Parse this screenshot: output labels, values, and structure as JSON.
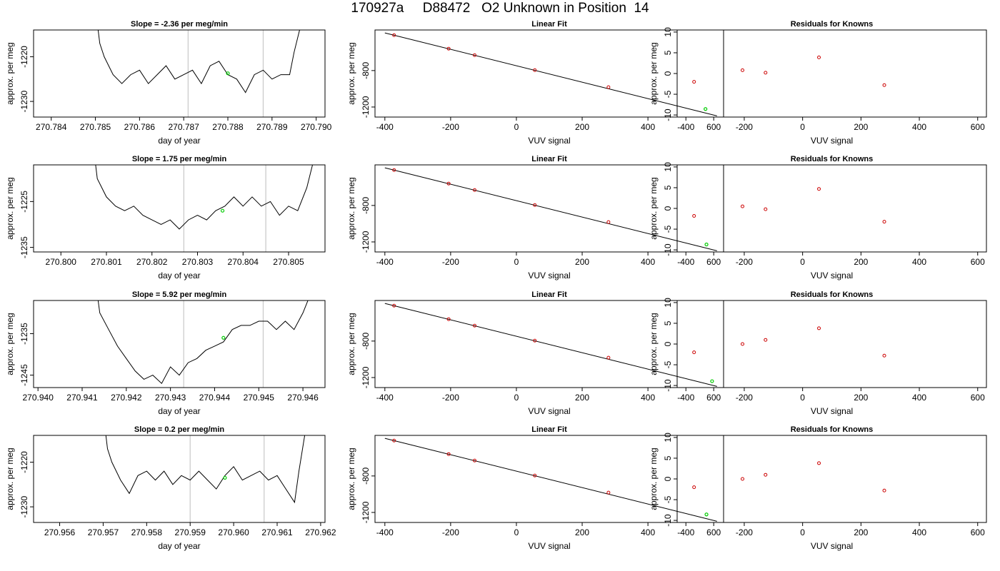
{
  "title": "170927a     D88472   O2 Unknown in Position  14",
  "colors": {
    "trace": "#000000",
    "marker_unknown": "#00cc00",
    "marker_known": "#cc0000",
    "vline": "#c8c8c8",
    "axis": "#000000"
  },
  "chart_data": [
    {
      "type": "line",
      "title": "Slope =  -2.36  per meg/min",
      "xlabel": "day of year",
      "ylabel": "approx. per meg",
      "xlim": [
        270.7836,
        270.7902
      ],
      "ylim": [
        -1233.5,
        -1214
      ],
      "xticks": [
        270.784,
        270.785,
        270.786,
        270.787,
        270.788,
        270.789,
        270.79
      ],
      "xtick_labels": [
        "270.784",
        "270.785",
        "270.786",
        "270.787",
        "270.788",
        "270.789",
        "270.790"
      ],
      "yticks": [
        -1220,
        -1230
      ],
      "ytick_labels": [
        "-1220",
        "-1230"
      ],
      "vlines": [
        270.7871,
        270.7888
      ],
      "marker": {
        "x": 270.788,
        "y": -1223.7
      },
      "series": [
        {
          "x": [
            270.78505,
            270.7851,
            270.7852,
            270.7854,
            270.7856,
            270.7858,
            270.786,
            270.7862,
            270.7864,
            270.7866,
            270.7868,
            270.787,
            270.7872,
            270.7874,
            270.7876,
            270.7878,
            270.788,
            270.7882,
            270.7884,
            270.7886,
            270.7888,
            270.789,
            270.7892,
            270.7894,
            270.7895,
            270.78965
          ],
          "y": [
            -1213,
            -1217,
            -1220,
            -1224,
            -1226,
            -1224,
            -1223,
            -1226,
            -1224,
            -1222,
            -1225,
            -1224,
            -1223,
            -1226,
            -1222,
            -1221,
            -1224,
            -1225,
            -1228,
            -1224,
            -1223,
            -1225,
            -1224,
            -1224,
            -1219,
            -1213
          ]
        }
      ]
    },
    {
      "type": "scatter",
      "title": "Linear Fit",
      "xlabel": "VUV signal",
      "ylabel": "approx. per meg",
      "xlim": [
        -430,
        630
      ],
      "ylim": [
        -1310,
        -355
      ],
      "xticks": [
        -400,
        -200,
        0,
        200,
        400,
        600
      ],
      "xtick_labels": [
        "-400",
        "-200",
        "0",
        "200",
        "400",
        "600"
      ],
      "yticks": [
        -800,
        -1200
      ],
      "ytick_labels": [
        "-800",
        "-1200"
      ],
      "fit_line": {
        "x": [
          -400,
          610
        ],
        "y": [
          -387,
          -1297
        ]
      },
      "known_points": {
        "x": [
          -372,
          -206,
          -127,
          56,
          280
        ],
        "y": [
          -412,
          -560,
          -631,
          -795,
          -982
        ]
      },
      "unknown_points": {
        "x": [
          575
        ],
        "y": [
          -1222
        ]
      }
    },
    {
      "type": "scatter",
      "title": "Residuals for Knowns",
      "xlabel": "VUV signal",
      "ylabel": "approx. per meg",
      "xlim": [
        -430,
        630
      ],
      "ylim": [
        -10.5,
        10.5
      ],
      "xticks": [
        -400,
        -200,
        0,
        200,
        400,
        600
      ],
      "xtick_labels": [
        "-400",
        "-200",
        "0",
        "200",
        "400",
        "600"
      ],
      "yticks": [
        10,
        5,
        0,
        -5,
        -10
      ],
      "ytick_labels": [
        "10",
        "5",
        "0",
        "-5",
        "-10"
      ],
      "known_points": {
        "x": [
          -372,
          -206,
          -127,
          56,
          280
        ],
        "y": [
          -2.0,
          0.8,
          0.2,
          3.9,
          -2.8
        ]
      }
    },
    {
      "type": "line",
      "title": "Slope =  1.75  per meg/min",
      "xlabel": "day of year",
      "ylabel": "approx. per meg",
      "xlim": [
        270.7994,
        270.8058
      ],
      "ylim": [
        -1236,
        -1217
      ],
      "xticks": [
        270.8,
        270.801,
        270.802,
        270.803,
        270.804,
        270.805
      ],
      "xtick_labels": [
        "270.800",
        "270.801",
        "270.802",
        "270.803",
        "270.804",
        "270.805"
      ],
      "yticks": [
        -1225,
        -1235
      ],
      "ytick_labels": [
        "-1225",
        "-1235"
      ],
      "vlines": [
        270.8027,
        270.8045
      ],
      "marker": {
        "x": 270.80355,
        "y": -1227
      },
      "series": [
        {
          "x": [
            270.80075,
            270.8008,
            270.801,
            270.8012,
            270.8014,
            270.8016,
            270.8018,
            270.802,
            270.8022,
            270.8024,
            270.8026,
            270.8028,
            270.803,
            270.8032,
            270.8034,
            270.8036,
            270.8038,
            270.804,
            270.8042,
            270.8044,
            270.8046,
            270.8048,
            270.805,
            270.8052,
            270.8054,
            270.80555
          ],
          "y": [
            -1216,
            -1220,
            -1224,
            -1226,
            -1227,
            -1226,
            -1228,
            -1229,
            -1230,
            -1229,
            -1231,
            -1229,
            -1228,
            -1229,
            -1227,
            -1226,
            -1224,
            -1226,
            -1224,
            -1226,
            -1225,
            -1228,
            -1226,
            -1227,
            -1222,
            -1216
          ]
        }
      ]
    },
    {
      "type": "scatter",
      "title": "Linear Fit",
      "xlabel": "VUV signal",
      "ylabel": "approx. per meg",
      "xlim": [
        -430,
        630
      ],
      "ylim": [
        -1310,
        -355
      ],
      "xticks": [
        -400,
        -200,
        0,
        200,
        400,
        600
      ],
      "xtick_labels": [
        "-400",
        "-200",
        "0",
        "200",
        "400",
        "600"
      ],
      "yticks": [
        -800,
        -1200
      ],
      "ytick_labels": [
        "-800",
        "-1200"
      ],
      "fit_line": {
        "x": [
          -400,
          610
        ],
        "y": [
          -387,
          -1297
        ]
      },
      "known_points": {
        "x": [
          -372,
          -206,
          -127,
          56,
          280
        ],
        "y": [
          -412,
          -560,
          -631,
          -795,
          -982
        ]
      },
      "unknown_points": {
        "x": [
          578
        ],
        "y": [
          -1228
        ]
      }
    },
    {
      "type": "scatter",
      "title": "Residuals for Knowns",
      "xlabel": "VUV signal",
      "ylabel": "approx. per meg",
      "xlim": [
        -430,
        630
      ],
      "ylim": [
        -10.5,
        10.5
      ],
      "xticks": [
        -400,
        -200,
        0,
        200,
        400,
        600
      ],
      "xtick_labels": [
        "-400",
        "-200",
        "0",
        "200",
        "400",
        "600"
      ],
      "yticks": [
        10,
        5,
        0,
        -5,
        -10
      ],
      "ytick_labels": [
        "10",
        "5",
        "0",
        "-5",
        "-10"
      ],
      "known_points": {
        "x": [
          -372,
          -206,
          -127,
          56,
          280
        ],
        "y": [
          -1.8,
          0.5,
          -0.2,
          4.7,
          -3.2
        ]
      }
    },
    {
      "type": "line",
      "title": "Slope =  5.92  per meg/min",
      "xlabel": "day of year",
      "ylabel": "approx. per meg",
      "xlim": [
        270.9399,
        270.9465
      ],
      "ylim": [
        -1248,
        -1227
      ],
      "xticks": [
        270.94,
        270.941,
        270.942,
        270.943,
        270.944,
        270.945,
        270.946
      ],
      "xtick_labels": [
        "270.940",
        "270.941",
        "270.942",
        "270.943",
        "270.944",
        "270.945",
        "270.946"
      ],
      "yticks": [
        -1235,
        -1245
      ],
      "ytick_labels": [
        "-1235",
        "-1245"
      ],
      "vlines": [
        270.9433,
        270.9451
      ],
      "marker": {
        "x": 270.9442,
        "y": -1236
      },
      "series": [
        {
          "x": [
            270.94135,
            270.9414,
            270.9416,
            270.9418,
            270.942,
            270.9422,
            270.9424,
            270.9426,
            270.9428,
            270.943,
            270.9432,
            270.9434,
            270.9436,
            270.9438,
            270.944,
            270.9442,
            270.9444,
            270.9446,
            270.9448,
            270.945,
            270.9452,
            270.9454,
            270.9456,
            270.9458,
            270.946,
            270.94615
          ],
          "y": [
            -1226,
            -1230,
            -1234,
            -1238,
            -1241,
            -1244,
            -1246,
            -1245,
            -1247,
            -1243,
            -1245,
            -1242,
            -1241,
            -1239,
            -1238,
            -1237,
            -1234,
            -1233,
            -1233,
            -1232,
            -1232,
            -1234,
            -1232,
            -1234,
            -1230,
            -1226
          ]
        }
      ]
    },
    {
      "type": "scatter",
      "title": "Linear Fit",
      "xlabel": "VUV signal",
      "ylabel": "approx. per meg",
      "xlim": [
        -430,
        630
      ],
      "ylim": [
        -1310,
        -355
      ],
      "xticks": [
        -400,
        -200,
        0,
        200,
        400,
        600
      ],
      "xtick_labels": [
        "-400",
        "-200",
        "0",
        "200",
        "400",
        "600"
      ],
      "yticks": [
        -800,
        -1200
      ],
      "ytick_labels": [
        "-800",
        "-1200"
      ],
      "fit_line": {
        "x": [
          -400,
          610
        ],
        "y": [
          -387,
          -1297
        ]
      },
      "known_points": {
        "x": [
          -372,
          -206,
          -127,
          56,
          280
        ],
        "y": [
          -412,
          -560,
          -631,
          -795,
          -982
        ]
      },
      "unknown_points": {
        "x": [
          595
        ],
        "y": [
          -1240
        ]
      }
    },
    {
      "type": "scatter",
      "title": "Residuals for Knowns",
      "xlabel": "VUV signal",
      "ylabel": "approx. per meg",
      "xlim": [
        -430,
        630
      ],
      "ylim": [
        -10.5,
        10.5
      ],
      "xticks": [
        -400,
        -200,
        0,
        200,
        400,
        600
      ],
      "xtick_labels": [
        "-400",
        "-200",
        "0",
        "200",
        "400",
        "600"
      ],
      "yticks": [
        10,
        5,
        0,
        -5,
        -10
      ],
      "ytick_labels": [
        "10",
        "5",
        "0",
        "-5",
        "-10"
      ],
      "known_points": {
        "x": [
          -372,
          -206,
          -127,
          56,
          280
        ],
        "y": [
          -2.0,
          0.0,
          1.0,
          3.8,
          -2.8
        ]
      }
    },
    {
      "type": "line",
      "title": "Slope =  0.2  per meg/min",
      "xlabel": "day of year",
      "ylabel": "approx. per meg",
      "xlim": [
        270.9554,
        270.9621
      ],
      "ylim": [
        -1233.5,
        -1214
      ],
      "xticks": [
        270.956,
        270.957,
        270.958,
        270.959,
        270.96,
        270.961,
        270.962
      ],
      "xtick_labels": [
        "270.956",
        "270.957",
        "270.958",
        "270.959",
        "270.960",
        "270.961",
        "270.962"
      ],
      "yticks": [
        -1220,
        -1230
      ],
      "ytick_labels": [
        "-1220",
        "-1230"
      ],
      "vlines": [
        270.959,
        270.9607
      ],
      "marker": {
        "x": 270.9598,
        "y": -1223.5
      },
      "series": [
        {
          "x": [
            270.95705,
            270.9571,
            270.9572,
            270.9574,
            270.9576,
            270.9578,
            270.958,
            270.9582,
            270.9584,
            270.9586,
            270.9588,
            270.959,
            270.9592,
            270.9594,
            270.9596,
            270.9598,
            270.96,
            270.9602,
            270.9604,
            270.9606,
            270.9608,
            270.961,
            270.9612,
            270.9614,
            270.9615,
            270.96165
          ],
          "y": [
            -1213,
            -1217,
            -1220,
            -1224,
            -1227,
            -1223,
            -1222,
            -1224,
            -1222,
            -1225,
            -1223,
            -1224,
            -1222,
            -1224,
            -1226,
            -1223,
            -1221,
            -1224,
            -1223,
            -1222,
            -1224,
            -1223,
            -1226,
            -1229,
            -1222,
            -1213
          ]
        }
      ]
    },
    {
      "type": "scatter",
      "title": "Linear Fit",
      "xlabel": "VUV signal",
      "ylabel": "approx. per meg",
      "xlim": [
        -430,
        630
      ],
      "ylim": [
        -1310,
        -355
      ],
      "xticks": [
        -400,
        -200,
        0,
        200,
        400,
        600
      ],
      "xtick_labels": [
        "-400",
        "-200",
        "0",
        "200",
        "400",
        "600"
      ],
      "yticks": [
        -800,
        -1200
      ],
      "ytick_labels": [
        "-800",
        "-1200"
      ],
      "fit_line": {
        "x": [
          -400,
          610
        ],
        "y": [
          -387,
          -1297
        ]
      },
      "known_points": {
        "x": [
          -372,
          -206,
          -127,
          56,
          280
        ],
        "y": [
          -412,
          -560,
          -631,
          -795,
          -982
        ]
      },
      "unknown_points": {
        "x": [
          578
        ],
        "y": [
          -1222
        ]
      }
    },
    {
      "type": "scatter",
      "title": "Residuals for Knowns",
      "xlabel": "VUV signal",
      "ylabel": "approx. per meg",
      "xlim": [
        -430,
        630
      ],
      "ylim": [
        -10.5,
        10.5
      ],
      "xticks": [
        -400,
        -200,
        0,
        200,
        400,
        600
      ],
      "xtick_labels": [
        "-400",
        "-200",
        "0",
        "200",
        "400",
        "600"
      ],
      "yticks": [
        10,
        5,
        0,
        -5,
        -10
      ],
      "ytick_labels": [
        "10",
        "5",
        "0",
        "-5",
        "-10"
      ],
      "known_points": {
        "x": [
          -372,
          -206,
          -127,
          56,
          280
        ],
        "y": [
          -2.0,
          0.0,
          1.0,
          3.8,
          -2.8
        ]
      }
    }
  ]
}
